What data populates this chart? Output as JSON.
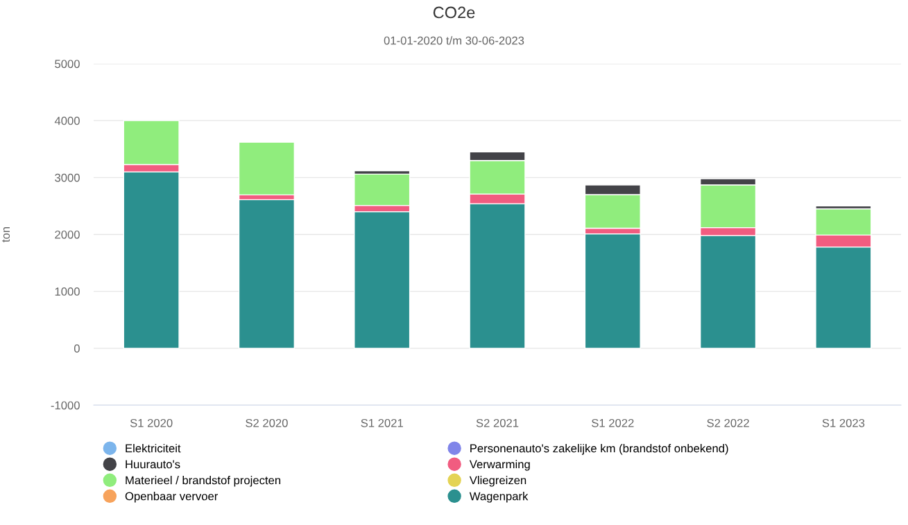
{
  "chart_data": {
    "type": "bar",
    "title": "CO2e",
    "subtitle": "01-01-2020 t/m 30-06-2023",
    "ylabel": "ton",
    "categories": [
      "S1 2020",
      "S2 2020",
      "S1 2021",
      "S2 2021",
      "S1 2022",
      "S2 2022",
      "S1 2023"
    ],
    "stacked": true,
    "ylim": [
      -1000,
      5000
    ],
    "yticks": [
      -1000,
      0,
      1000,
      2000,
      3000,
      4000,
      5000
    ],
    "grid": "y",
    "legend": "bottom",
    "marker": "circle",
    "series": [
      {
        "name": "Wagenpark",
        "color": "#2b908f",
        "values": [
          3100,
          2610,
          2400,
          2540,
          2010,
          1980,
          1780
        ]
      },
      {
        "name": "Verwarming",
        "color": "#f15c80",
        "values": [
          130,
          85,
          110,
          170,
          100,
          140,
          210
        ]
      },
      {
        "name": "Materieel / brandstof projecten",
        "color": "#90ed7d",
        "values": [
          770,
          925,
          550,
          590,
          590,
          750,
          460
        ]
      },
      {
        "name": "Huurauto's",
        "color": "#434348",
        "values": [
          null,
          null,
          60,
          150,
          170,
          110,
          50
        ]
      },
      {
        "name": "Elektriciteit",
        "color": "#7cb5ec",
        "values": [
          null,
          null,
          null,
          null,
          null,
          null,
          null
        ]
      },
      {
        "name": "Openbaar vervoer",
        "color": "#f7a35c",
        "values": [
          null,
          null,
          null,
          null,
          null,
          null,
          null
        ]
      },
      {
        "name": "Personenauto's zakelijke km (brandstof onbekend)",
        "color": "#8085e9",
        "values": [
          null,
          null,
          null,
          null,
          null,
          null,
          null
        ]
      },
      {
        "name": "Vliegreizen",
        "color": "#e4d354",
        "values": [
          null,
          null,
          null,
          null,
          null,
          null,
          null
        ]
      }
    ]
  }
}
